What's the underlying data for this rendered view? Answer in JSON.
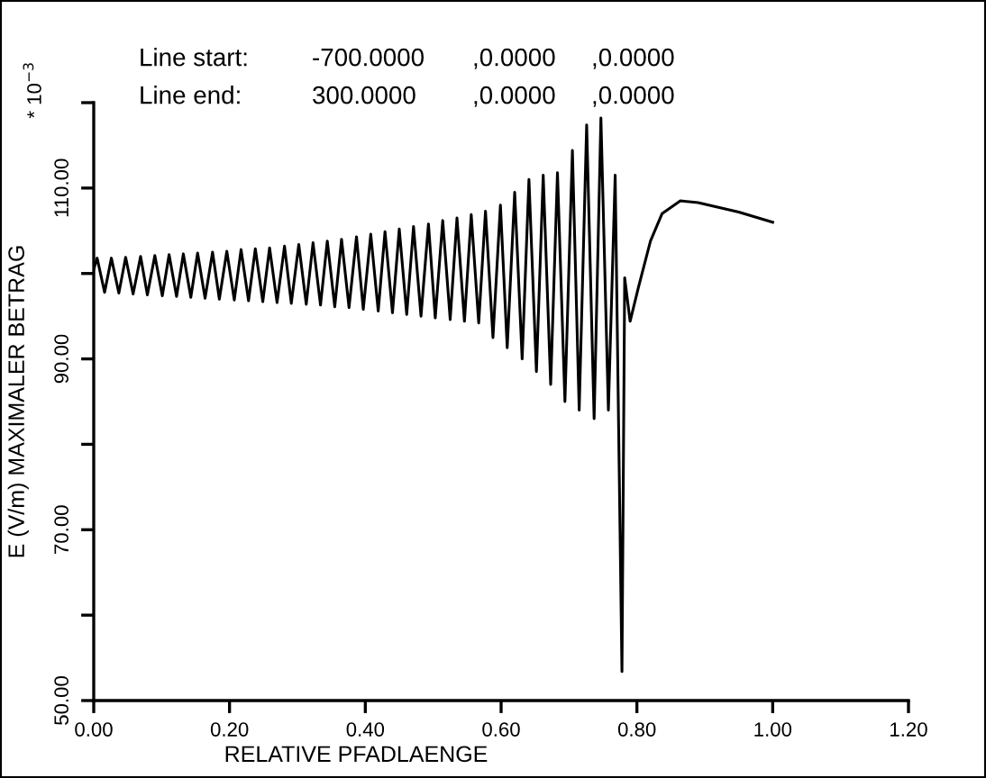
{
  "chart_data": {
    "type": "line",
    "xlabel": "RELATIVE PFADLAENGE",
    "ylabel": "E (V/m) MAXIMALER BETRAG",
    "annotations": [
      "* 10$^{−3}$",
      "Line start:",
      "-700.0000",
      ",0.0000",
      ",0.0000",
      "Line end:",
      "300.0000",
      ",0.0000",
      ",0.0000"
    ],
    "xlim": [
      0,
      1.2
    ],
    "xticks": [
      {
        "value": 0,
        "label": "0.00"
      },
      {
        "value": 0.2,
        "label": "0.20"
      },
      {
        "value": 0.4,
        "label": "0.40"
      },
      {
        "value": 0.6,
        "label": "0.60"
      },
      {
        "value": 0.8,
        "label": "0.80"
      },
      {
        "value": 1.0,
        "label": "1.00"
      },
      {
        "value": 1.2,
        "label": "1.20"
      }
    ],
    "ylim": [
      50,
      120
    ],
    "yticks": [
      {
        "value": 50,
        "label": "50.00"
      },
      {
        "value": 60,
        "label": null
      },
      {
        "value": 70,
        "label": "70.00"
      },
      {
        "value": 80,
        "label": null
      },
      {
        "value": 90,
        "label": "90.00"
      },
      {
        "value": 100,
        "label": null
      },
      {
        "value": 110,
        "label": "110.00"
      },
      {
        "value": 120,
        "label": null
      }
    ],
    "grid": false,
    "legend": false,
    "marker": "none",
    "line_style": "solid",
    "series": [
      {
        "color": "#000000",
        "x": [
          0,
          0.005,
          0.016,
          0.026,
          0.037,
          0.047,
          0.058,
          0.069,
          0.079,
          0.09,
          0.101,
          0.111,
          0.122,
          0.132,
          0.143,
          0.153,
          0.164,
          0.175,
          0.185,
          0.196,
          0.207,
          0.217,
          0.228,
          0.238,
          0.249,
          0.259,
          0.27,
          0.281,
          0.291,
          0.302,
          0.313,
          0.323,
          0.334,
          0.344,
          0.355,
          0.365,
          0.376,
          0.387,
          0.397,
          0.408,
          0.419,
          0.429,
          0.44,
          0.45,
          0.461,
          0.471,
          0.482,
          0.493,
          0.503,
          0.514,
          0.525,
          0.535,
          0.546,
          0.556,
          0.567,
          0.577,
          0.588,
          0.599,
          0.609,
          0.62,
          0.631,
          0.641,
          0.652,
          0.662,
          0.673,
          0.683,
          0.694,
          0.705,
          0.715,
          0.726,
          0.737,
          0.747,
          0.758,
          0.768,
          0.778,
          0.782,
          0.79,
          0.802,
          0.82,
          0.837,
          0.864,
          0.89,
          0.95,
          1.0
        ],
        "values": [
          100.5,
          101.8,
          97.8,
          101.8,
          97.7,
          101.9,
          97.6,
          102.0,
          97.5,
          102.1,
          97.4,
          102.2,
          97.3,
          102.3,
          97.2,
          102.4,
          97.1,
          102.5,
          97.0,
          102.6,
          96.9,
          102.8,
          96.8,
          102.9,
          96.7,
          103.0,
          96.6,
          103.2,
          96.5,
          103.4,
          96.4,
          103.6,
          96.3,
          103.8,
          96.1,
          104.0,
          96.0,
          104.3,
          95.8,
          104.6,
          95.6,
          104.9,
          95.4,
          105.2,
          95.2,
          105.5,
          95.0,
          105.8,
          94.8,
          106.2,
          94.6,
          106.5,
          94.4,
          106.9,
          94.2,
          107.3,
          92.5,
          108.0,
          91.3,
          109.5,
          90.0,
          111.0,
          88.5,
          111.5,
          87.0,
          111.8,
          85.0,
          114.4,
          84.0,
          117.4,
          83.0,
          118.2,
          84.0,
          111.5,
          53.4,
          99.5,
          94.4,
          98.3,
          103.8,
          107.0,
          108.5,
          108.3,
          107.2,
          106.0
        ]
      }
    ]
  }
}
